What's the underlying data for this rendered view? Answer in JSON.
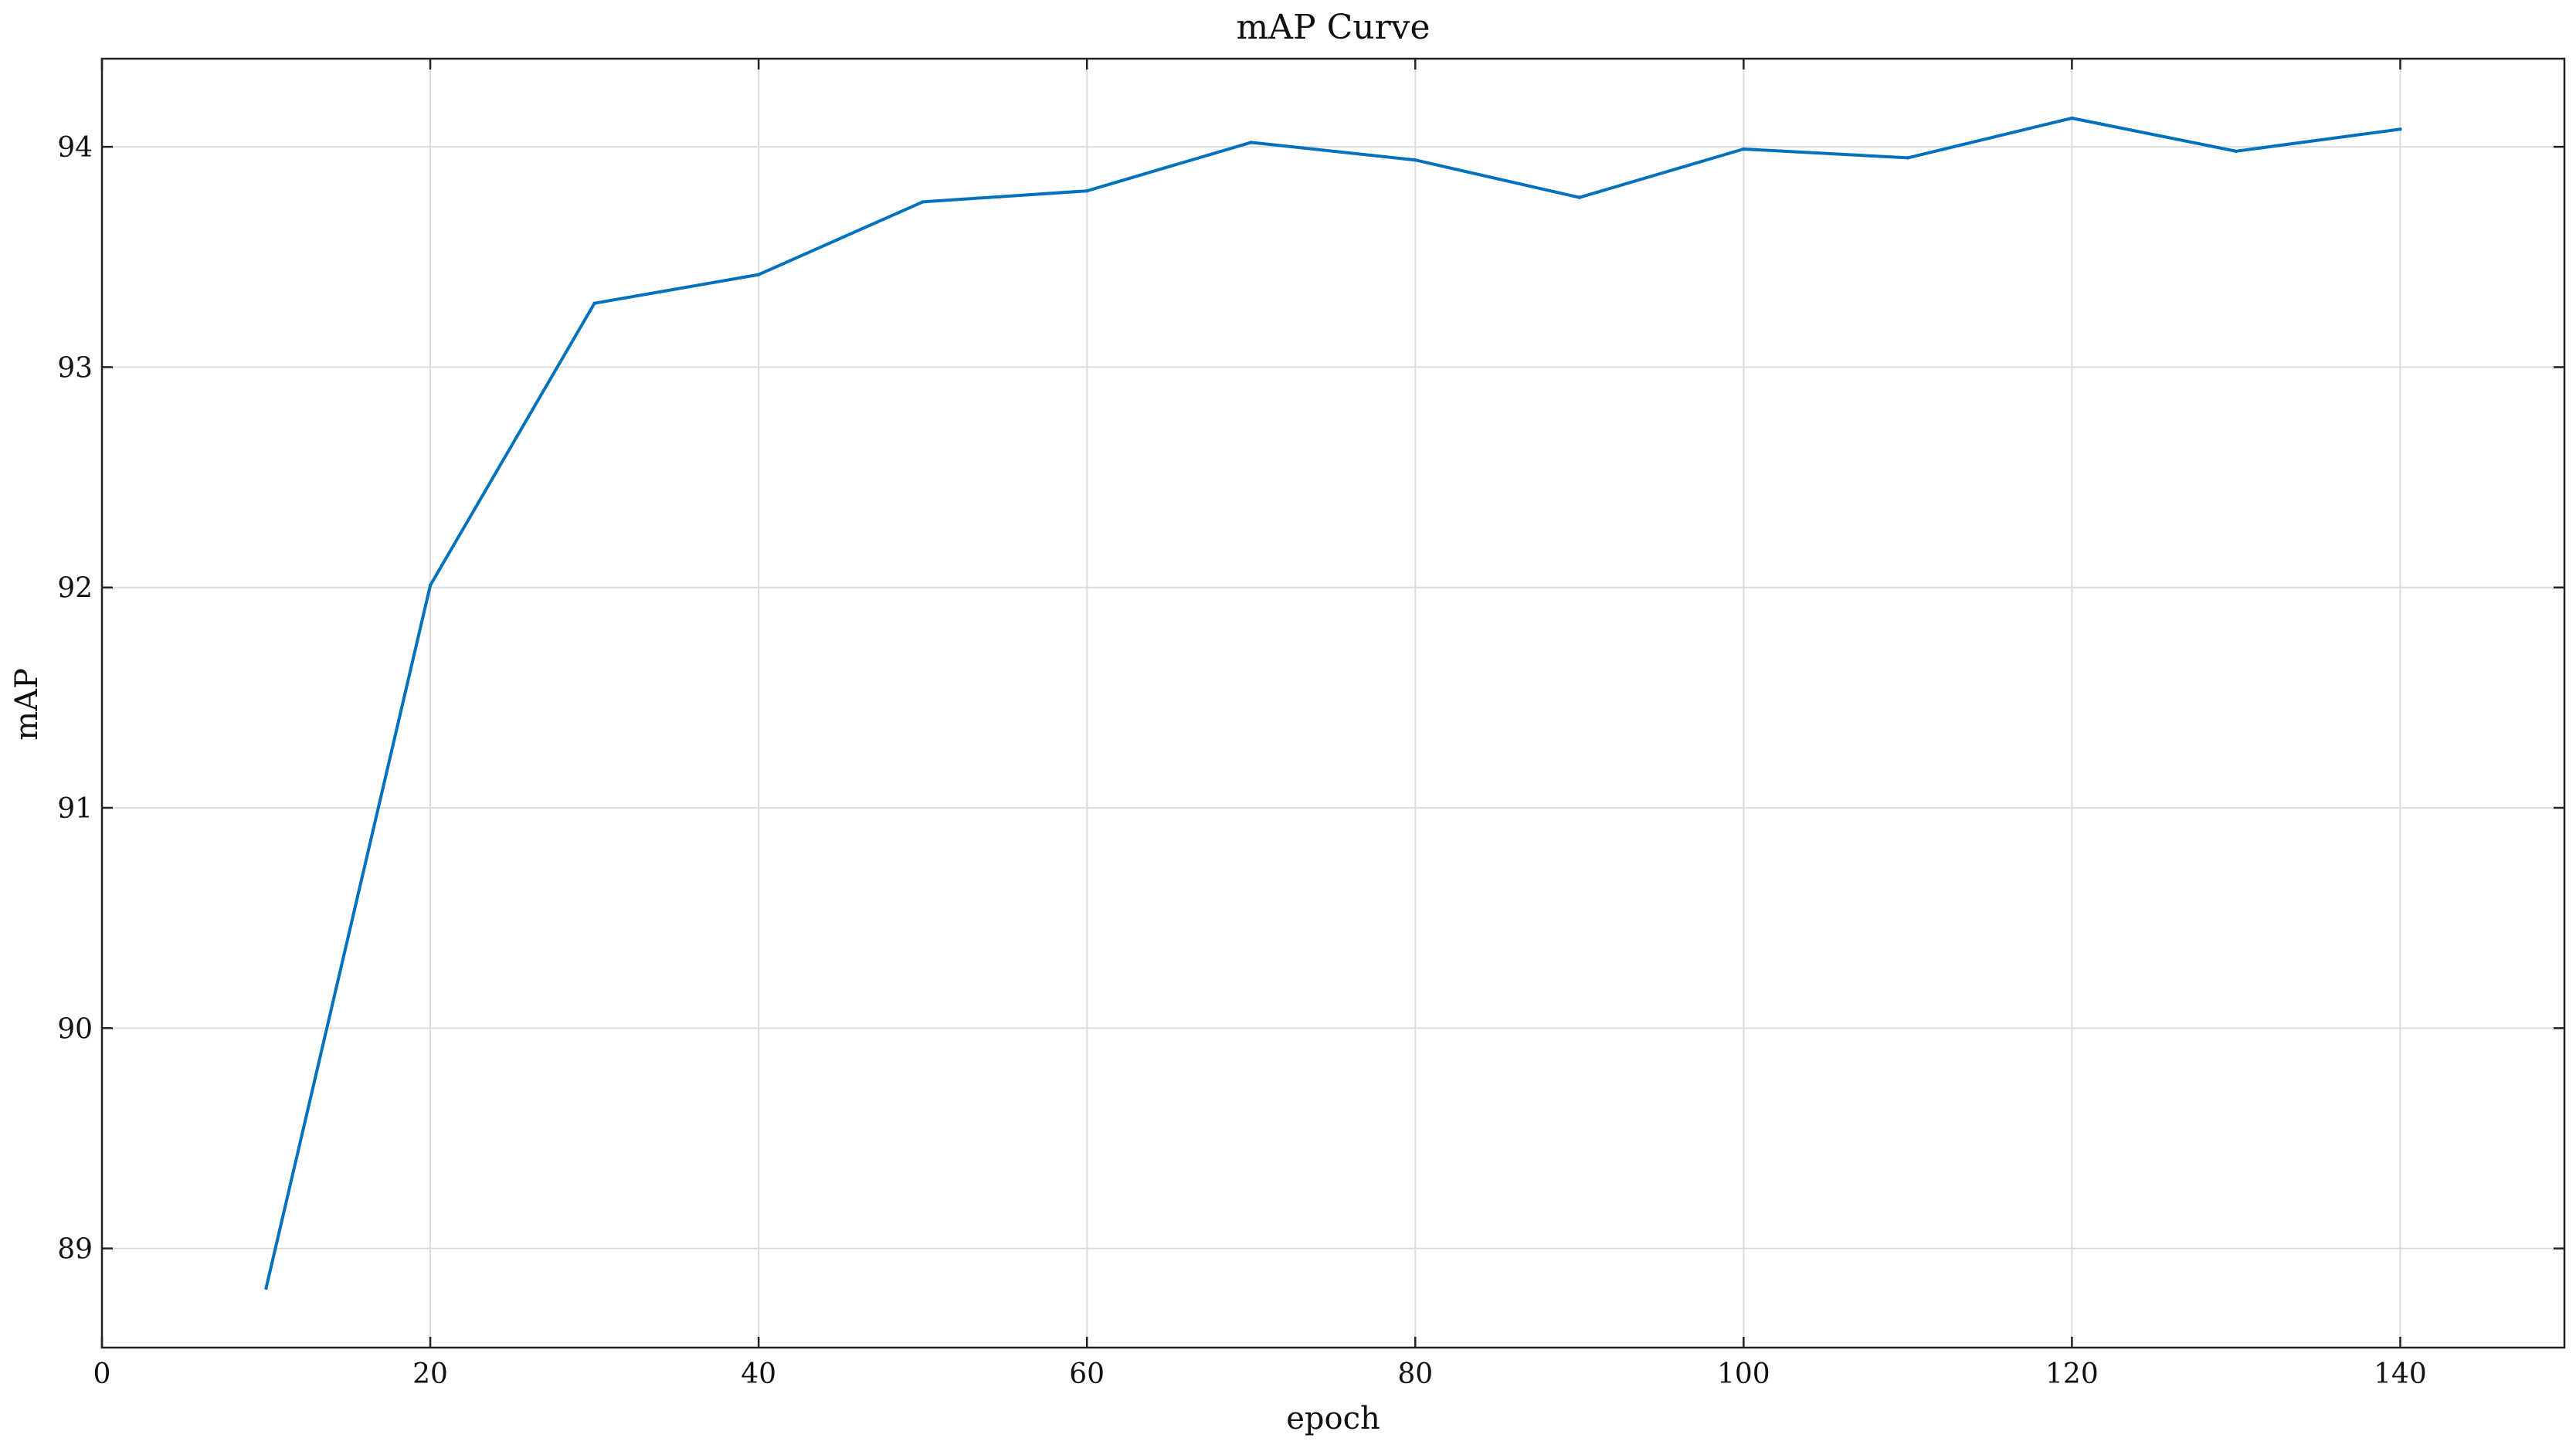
{
  "chart_data": {
    "type": "line",
    "title": "mAP Curve",
    "xlabel": "epoch",
    "ylabel": "mAP",
    "xlim": [
      0,
      150
    ],
    "ylim": [
      88.55,
      94.4
    ],
    "xticks": [
      0,
      20,
      40,
      60,
      80,
      100,
      120,
      140
    ],
    "yticks": [
      89,
      90,
      91,
      92,
      93,
      94
    ],
    "grid": true,
    "series": [
      {
        "color": "#0072BD",
        "x": [
          10,
          20,
          30,
          40,
          50,
          60,
          70,
          80,
          90,
          100,
          110,
          120,
          130,
          140
        ],
        "y": [
          88.82,
          92.01,
          93.29,
          93.42,
          93.75,
          93.8,
          94.02,
          93.94,
          93.77,
          93.99,
          93.95,
          94.13,
          93.98,
          94.08
        ]
      }
    ]
  }
}
